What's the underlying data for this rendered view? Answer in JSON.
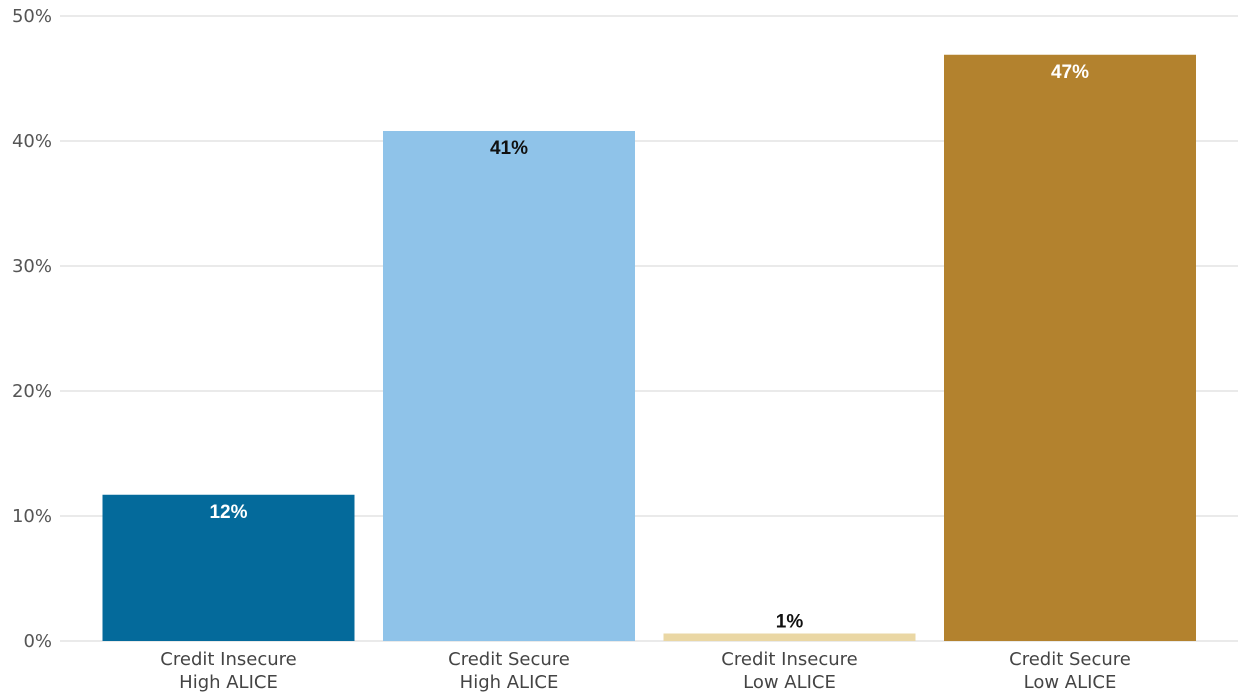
{
  "chart_data": {
    "type": "bar",
    "categories": [
      [
        "Credit Insecure",
        "High ALICE"
      ],
      [
        "Credit Secure",
        "High ALICE"
      ],
      [
        "Credit Insecure",
        "Low ALICE"
      ],
      [
        "Credit Secure",
        "Low ALICE"
      ]
    ],
    "values": [
      11.7,
      40.8,
      0.6,
      46.9
    ],
    "data_labels": [
      "12%",
      "41%",
      "1%",
      "47%"
    ],
    "bar_colors": [
      "#046a9b",
      "#8fc3e9",
      "#ead7a4",
      "#b3822e"
    ],
    "label_colors": [
      "#ffffff",
      "#111111",
      "#111111",
      "#ffffff"
    ],
    "label_position": [
      "inside-top",
      "inside-top",
      "above",
      "inside-top"
    ],
    "y_ticks": [
      0,
      10,
      20,
      30,
      40,
      50
    ],
    "y_tick_labels": [
      "0%",
      "10%",
      "20%",
      "30%",
      "40%",
      "50%"
    ],
    "ylim": [
      0,
      50
    ],
    "grid": true,
    "title": "",
    "xlabel": "",
    "ylabel": "",
    "legend": "none"
  }
}
